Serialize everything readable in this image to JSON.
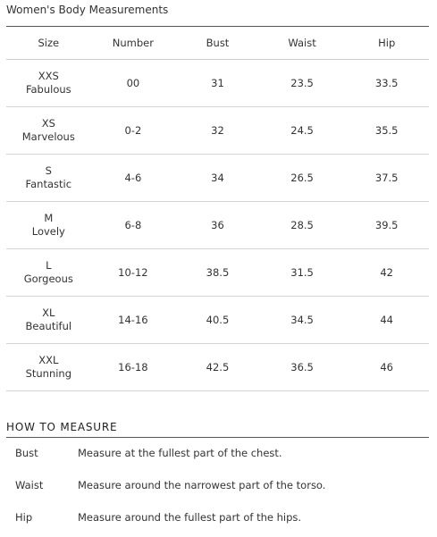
{
  "title": "Women's Body Measurements",
  "table": {
    "headers": [
      "Size",
      "Number",
      "Bust",
      "Waist",
      "Hip"
    ],
    "rows": [
      {
        "code": "XXS",
        "name": "Fabulous",
        "number": "00",
        "bust": "31",
        "waist": "23.5",
        "hip": "33.5"
      },
      {
        "code": "XS",
        "name": "Marvelous",
        "number": "0-2",
        "bust": "32",
        "waist": "24.5",
        "hip": "35.5"
      },
      {
        "code": "S",
        "name": "Fantastic",
        "number": "4-6",
        "bust": "34",
        "waist": "26.5",
        "hip": "37.5"
      },
      {
        "code": "M",
        "name": "Lovely",
        "number": "6-8",
        "bust": "36",
        "waist": "28.5",
        "hip": "39.5"
      },
      {
        "code": "L",
        "name": "Gorgeous",
        "number": "10-12",
        "bust": "38.5",
        "waist": "31.5",
        "hip": "42"
      },
      {
        "code": "XL",
        "name": "Beautiful",
        "number": "14-16",
        "bust": "40.5",
        "waist": "34.5",
        "hip": "44"
      },
      {
        "code": "XXL",
        "name": "Stunning",
        "number": "16-18",
        "bust": "42.5",
        "waist": "36.5",
        "hip": "46"
      }
    ]
  },
  "how_to_measure": {
    "heading": "HOW TO MEASURE",
    "items": [
      {
        "label": "Bust",
        "desc": "Measure at the fullest part of the chest."
      },
      {
        "label": "Waist",
        "desc": "Measure around the narrowest part of the torso."
      },
      {
        "label": "Hip",
        "desc": "Measure around the fullest part of the hips."
      }
    ]
  }
}
